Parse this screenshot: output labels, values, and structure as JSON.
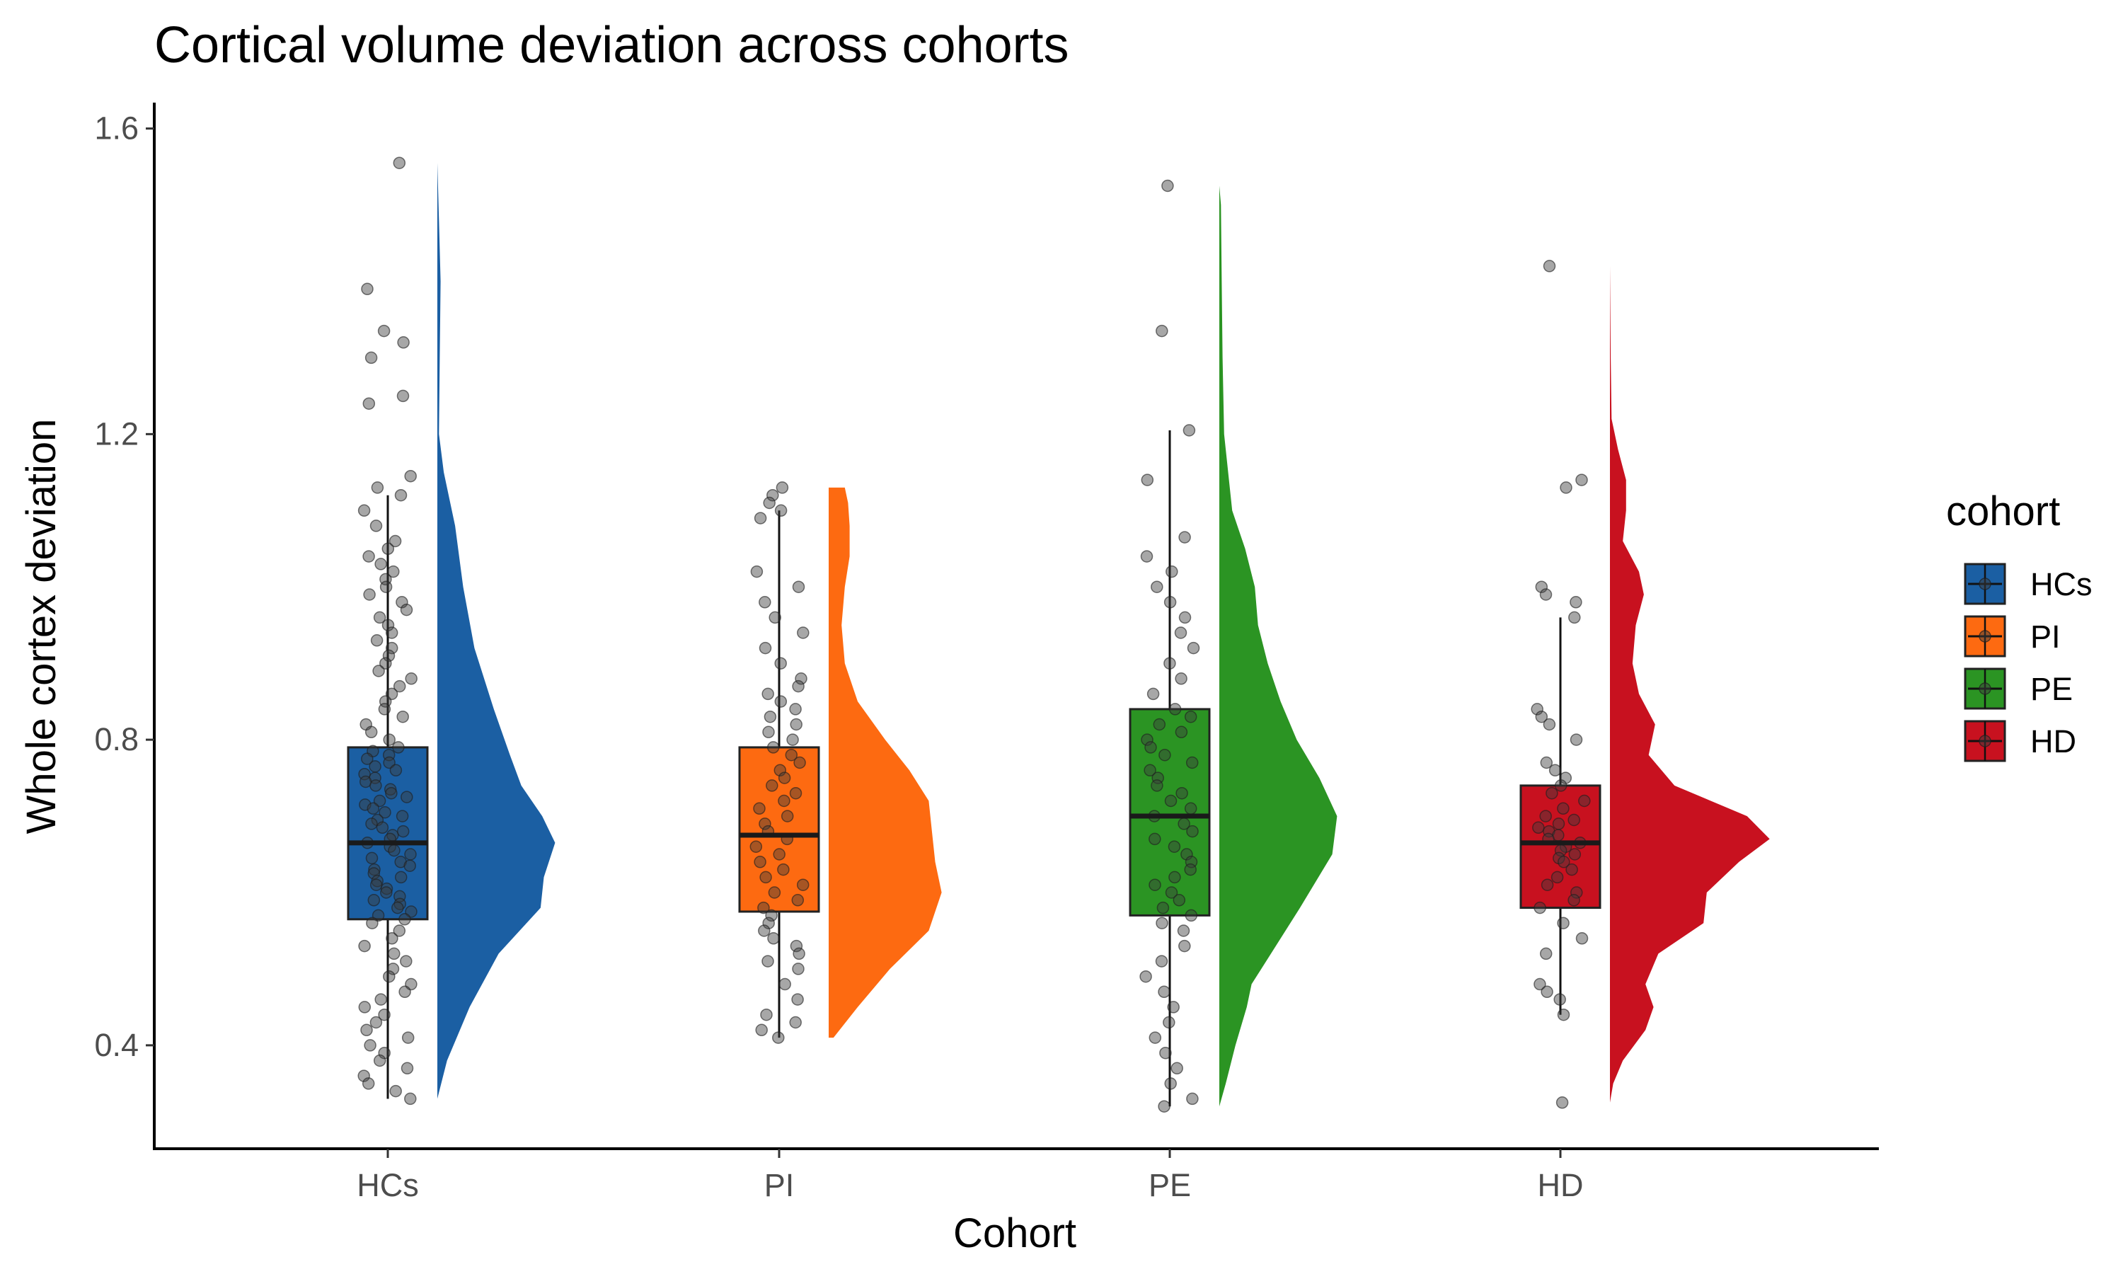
{
  "chart_data": {
    "type": "raincloud",
    "title": "Cortical volume deviation across cohorts",
    "xlabel": "Cohort",
    "ylabel": "Whole cortex deviation",
    "ylim": [
      0.26,
      1.62
    ],
    "yticks": [
      0.4,
      0.8,
      1.2,
      1.6
    ],
    "ytick_labels": [
      "0.4",
      "0.8",
      "1.2",
      "1.6"
    ],
    "categories": [
      "HCs",
      "PI",
      "PE",
      "HD"
    ],
    "legend": {
      "title": "cohort",
      "position": "right",
      "items": [
        "HCs",
        "PI",
        "PE",
        "HD"
      ]
    },
    "grid": false,
    "series": [
      {
        "name": "HCs",
        "color": "#1b5fa3",
        "box": {
          "whisker_low": 0.33,
          "q1": 0.565,
          "median": 0.665,
          "q3": 0.79,
          "whisker_high": 1.12
        },
        "density_range": [
          0.33,
          1.555
        ],
        "density_shape": [
          [
            0.33,
            0.0
          ],
          [
            0.38,
            0.06
          ],
          [
            0.45,
            0.2
          ],
          [
            0.52,
            0.38
          ],
          [
            0.58,
            0.64
          ],
          [
            0.62,
            0.66
          ],
          [
            0.665,
            0.73
          ],
          [
            0.7,
            0.65
          ],
          [
            0.74,
            0.52
          ],
          [
            0.78,
            0.45
          ],
          [
            0.84,
            0.35
          ],
          [
            0.92,
            0.23
          ],
          [
            1.0,
            0.16
          ],
          [
            1.08,
            0.11
          ],
          [
            1.15,
            0.04
          ],
          [
            1.2,
            0.01
          ],
          [
            1.3,
            0.015
          ],
          [
            1.4,
            0.02
          ],
          [
            1.48,
            0.01
          ],
          [
            1.555,
            0.0
          ]
        ],
        "points": [
          1.555,
          1.39,
          1.335,
          1.32,
          1.3,
          1.25,
          1.24,
          1.145,
          1.13,
          1.12,
          1.1,
          1.08,
          1.06,
          1.05,
          1.04,
          1.03,
          1.02,
          1.01,
          1.0,
          0.99,
          0.98,
          0.97,
          0.96,
          0.95,
          0.94,
          0.93,
          0.92,
          0.91,
          0.9,
          0.89,
          0.88,
          0.87,
          0.86,
          0.85,
          0.84,
          0.83,
          0.82,
          0.81,
          0.8,
          0.79,
          0.785,
          0.78,
          0.775,
          0.77,
          0.765,
          0.76,
          0.755,
          0.75,
          0.745,
          0.74,
          0.735,
          0.73,
          0.725,
          0.72,
          0.715,
          0.71,
          0.705,
          0.7,
          0.695,
          0.69,
          0.685,
          0.68,
          0.675,
          0.67,
          0.665,
          0.66,
          0.655,
          0.65,
          0.645,
          0.64,
          0.635,
          0.63,
          0.625,
          0.62,
          0.615,
          0.61,
          0.605,
          0.6,
          0.595,
          0.59,
          0.585,
          0.58,
          0.575,
          0.57,
          0.565,
          0.56,
          0.55,
          0.54,
          0.53,
          0.52,
          0.51,
          0.5,
          0.49,
          0.48,
          0.47,
          0.46,
          0.45,
          0.44,
          0.43,
          0.42,
          0.41,
          0.4,
          0.39,
          0.38,
          0.37,
          0.36,
          0.35,
          0.34,
          0.33
        ]
      },
      {
        "name": "PI",
        "color": "#fd6a11",
        "box": {
          "whisker_low": 0.41,
          "q1": 0.575,
          "median": 0.675,
          "q3": 0.79,
          "whisker_high": 1.1
        },
        "density_range": [
          0.41,
          1.13
        ],
        "density_shape": [
          [
            0.41,
            0.03
          ],
          [
            0.45,
            0.18
          ],
          [
            0.5,
            0.38
          ],
          [
            0.55,
            0.62
          ],
          [
            0.6,
            0.7
          ],
          [
            0.64,
            0.66
          ],
          [
            0.68,
            0.64
          ],
          [
            0.72,
            0.62
          ],
          [
            0.76,
            0.5
          ],
          [
            0.8,
            0.35
          ],
          [
            0.85,
            0.18
          ],
          [
            0.9,
            0.1
          ],
          [
            0.95,
            0.08
          ],
          [
            1.0,
            0.1
          ],
          [
            1.04,
            0.13
          ],
          [
            1.08,
            0.13
          ],
          [
            1.11,
            0.12
          ],
          [
            1.13,
            0.1
          ]
        ],
        "points": [
          1.13,
          1.12,
          1.11,
          1.1,
          1.09,
          1.02,
          1.0,
          0.98,
          0.96,
          0.94,
          0.92,
          0.9,
          0.88,
          0.87,
          0.86,
          0.85,
          0.84,
          0.83,
          0.82,
          0.81,
          0.8,
          0.79,
          0.78,
          0.77,
          0.76,
          0.75,
          0.74,
          0.73,
          0.72,
          0.71,
          0.7,
          0.69,
          0.68,
          0.67,
          0.66,
          0.65,
          0.64,
          0.63,
          0.62,
          0.61,
          0.6,
          0.59,
          0.58,
          0.57,
          0.56,
          0.55,
          0.54,
          0.53,
          0.52,
          0.51,
          0.5,
          0.48,
          0.46,
          0.44,
          0.43,
          0.42,
          0.41
        ]
      },
      {
        "name": "PE",
        "color": "#2b9423",
        "box": {
          "whisker_low": 0.32,
          "q1": 0.57,
          "median": 0.7,
          "q3": 0.84,
          "whisker_high": 1.205
        },
        "density_range": [
          0.32,
          1.525
        ],
        "density_shape": [
          [
            0.32,
            0.0
          ],
          [
            0.35,
            0.04
          ],
          [
            0.4,
            0.1
          ],
          [
            0.45,
            0.17
          ],
          [
            0.48,
            0.2
          ],
          [
            0.52,
            0.32
          ],
          [
            0.58,
            0.5
          ],
          [
            0.65,
            0.7
          ],
          [
            0.7,
            0.73
          ],
          [
            0.75,
            0.62
          ],
          [
            0.8,
            0.48
          ],
          [
            0.85,
            0.38
          ],
          [
            0.9,
            0.3
          ],
          [
            0.95,
            0.24
          ],
          [
            1.0,
            0.22
          ],
          [
            1.05,
            0.16
          ],
          [
            1.1,
            0.08
          ],
          [
            1.2,
            0.03
          ],
          [
            1.3,
            0.02
          ],
          [
            1.4,
            0.015
          ],
          [
            1.5,
            0.01
          ],
          [
            1.525,
            0.0
          ]
        ],
        "points": [
          1.525,
          1.335,
          1.205,
          1.14,
          1.065,
          1.04,
          1.02,
          1.0,
          0.98,
          0.96,
          0.94,
          0.92,
          0.9,
          0.88,
          0.86,
          0.84,
          0.83,
          0.82,
          0.81,
          0.8,
          0.79,
          0.78,
          0.77,
          0.76,
          0.75,
          0.74,
          0.73,
          0.72,
          0.71,
          0.7,
          0.69,
          0.68,
          0.67,
          0.66,
          0.65,
          0.64,
          0.63,
          0.62,
          0.61,
          0.6,
          0.59,
          0.58,
          0.57,
          0.56,
          0.55,
          0.53,
          0.51,
          0.49,
          0.47,
          0.45,
          0.43,
          0.41,
          0.39,
          0.37,
          0.35,
          0.33,
          0.32
        ]
      },
      {
        "name": "HD",
        "color": "#c8111f",
        "box": {
          "whisker_low": 0.44,
          "q1": 0.58,
          "median": 0.665,
          "q3": 0.74,
          "whisker_high": 0.96
        },
        "density_range": [
          0.325,
          1.42
        ],
        "density_shape": [
          [
            0.325,
            0.0
          ],
          [
            0.35,
            0.02
          ],
          [
            0.38,
            0.08
          ],
          [
            0.42,
            0.22
          ],
          [
            0.45,
            0.27
          ],
          [
            0.48,
            0.22
          ],
          [
            0.52,
            0.3
          ],
          [
            0.56,
            0.58
          ],
          [
            0.6,
            0.6
          ],
          [
            0.64,
            0.8
          ],
          [
            0.67,
            0.99
          ],
          [
            0.7,
            0.85
          ],
          [
            0.74,
            0.4
          ],
          [
            0.78,
            0.24
          ],
          [
            0.82,
            0.28
          ],
          [
            0.86,
            0.18
          ],
          [
            0.9,
            0.14
          ],
          [
            0.95,
            0.16
          ],
          [
            0.99,
            0.21
          ],
          [
            1.02,
            0.18
          ],
          [
            1.06,
            0.08
          ],
          [
            1.1,
            0.1
          ],
          [
            1.14,
            0.1
          ],
          [
            1.18,
            0.05
          ],
          [
            1.22,
            0.01
          ],
          [
            1.3,
            0.005
          ],
          [
            1.42,
            0.0
          ]
        ],
        "points": [
          1.42,
          1.14,
          1.13,
          1.0,
          0.99,
          0.98,
          0.96,
          0.84,
          0.83,
          0.82,
          0.8,
          0.77,
          0.76,
          0.75,
          0.74,
          0.73,
          0.72,
          0.71,
          0.7,
          0.695,
          0.69,
          0.685,
          0.68,
          0.675,
          0.67,
          0.665,
          0.66,
          0.655,
          0.65,
          0.645,
          0.64,
          0.63,
          0.62,
          0.61,
          0.6,
          0.59,
          0.58,
          0.56,
          0.54,
          0.52,
          0.48,
          0.47,
          0.46,
          0.44,
          0.325
        ]
      }
    ]
  }
}
